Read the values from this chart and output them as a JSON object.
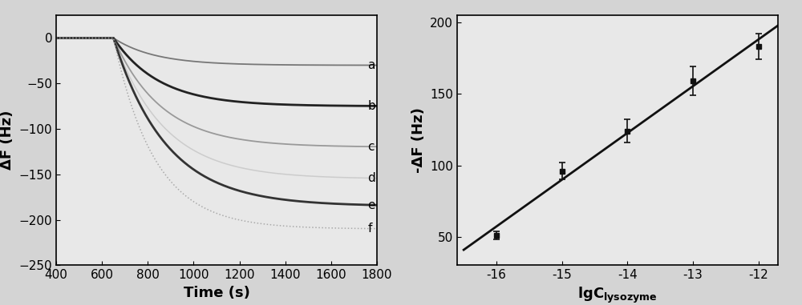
{
  "left_plot": {
    "xlabel": "Time (s)",
    "ylabel": "ΔF (Hz)",
    "xlim": [
      400,
      1800
    ],
    "ylim": [
      -250,
      25
    ],
    "yticks": [
      0,
      -50,
      -100,
      -150,
      -200,
      -250
    ],
    "xticks": [
      400,
      600,
      800,
      1000,
      1200,
      1400,
      1600,
      1800
    ],
    "curves": [
      {
        "label": "a",
        "final_val": -30,
        "tau": 180,
        "color": "#777777",
        "lw": 1.3,
        "ls": "solid"
      },
      {
        "label": "b",
        "final_val": -75,
        "tau": 200,
        "color": "#222222",
        "lw": 2.0,
        "ls": "solid"
      },
      {
        "label": "c",
        "final_val": -120,
        "tau": 210,
        "color": "#999999",
        "lw": 1.3,
        "ls": "solid"
      },
      {
        "label": "d",
        "final_val": -155,
        "tau": 220,
        "color": "#cccccc",
        "lw": 1.1,
        "ls": "solid"
      },
      {
        "label": "e",
        "final_val": -185,
        "tau": 230,
        "color": "#333333",
        "lw": 2.0,
        "ls": "solid"
      },
      {
        "label": "f",
        "final_val": -210,
        "tau": 180,
        "color": "#aaaaaa",
        "lw": 1.1,
        "ls": "dotted"
      }
    ],
    "transition_start": 650,
    "flat_start": 400
  },
  "right_plot": {
    "xlabel": "lgC",
    "xlabel_sub": "lysozyme",
    "ylabel": "-ΔF (Hz)",
    "xlim": [
      -16.6,
      -11.7
    ],
    "ylim": [
      30,
      205
    ],
    "yticks": [
      50,
      100,
      150,
      200
    ],
    "xticks": [
      -16,
      -15,
      -14,
      -13,
      -12
    ],
    "xticklabels": [
      "-16",
      "-15",
      "-14",
      "-13",
      "-12"
    ],
    "data_x": [
      -16,
      -15,
      -14,
      -13,
      -12
    ],
    "data_y": [
      51,
      96,
      124,
      159,
      183
    ],
    "data_yerr": [
      3,
      6,
      8,
      10,
      9
    ],
    "line_x_start": -16.5,
    "line_x_end": -11.7,
    "marker_color": "#111111",
    "line_color": "#111111"
  },
  "bg_color": "#d4d4d4",
  "plot_bg": "#e8e8e8",
  "font_size": 11
}
